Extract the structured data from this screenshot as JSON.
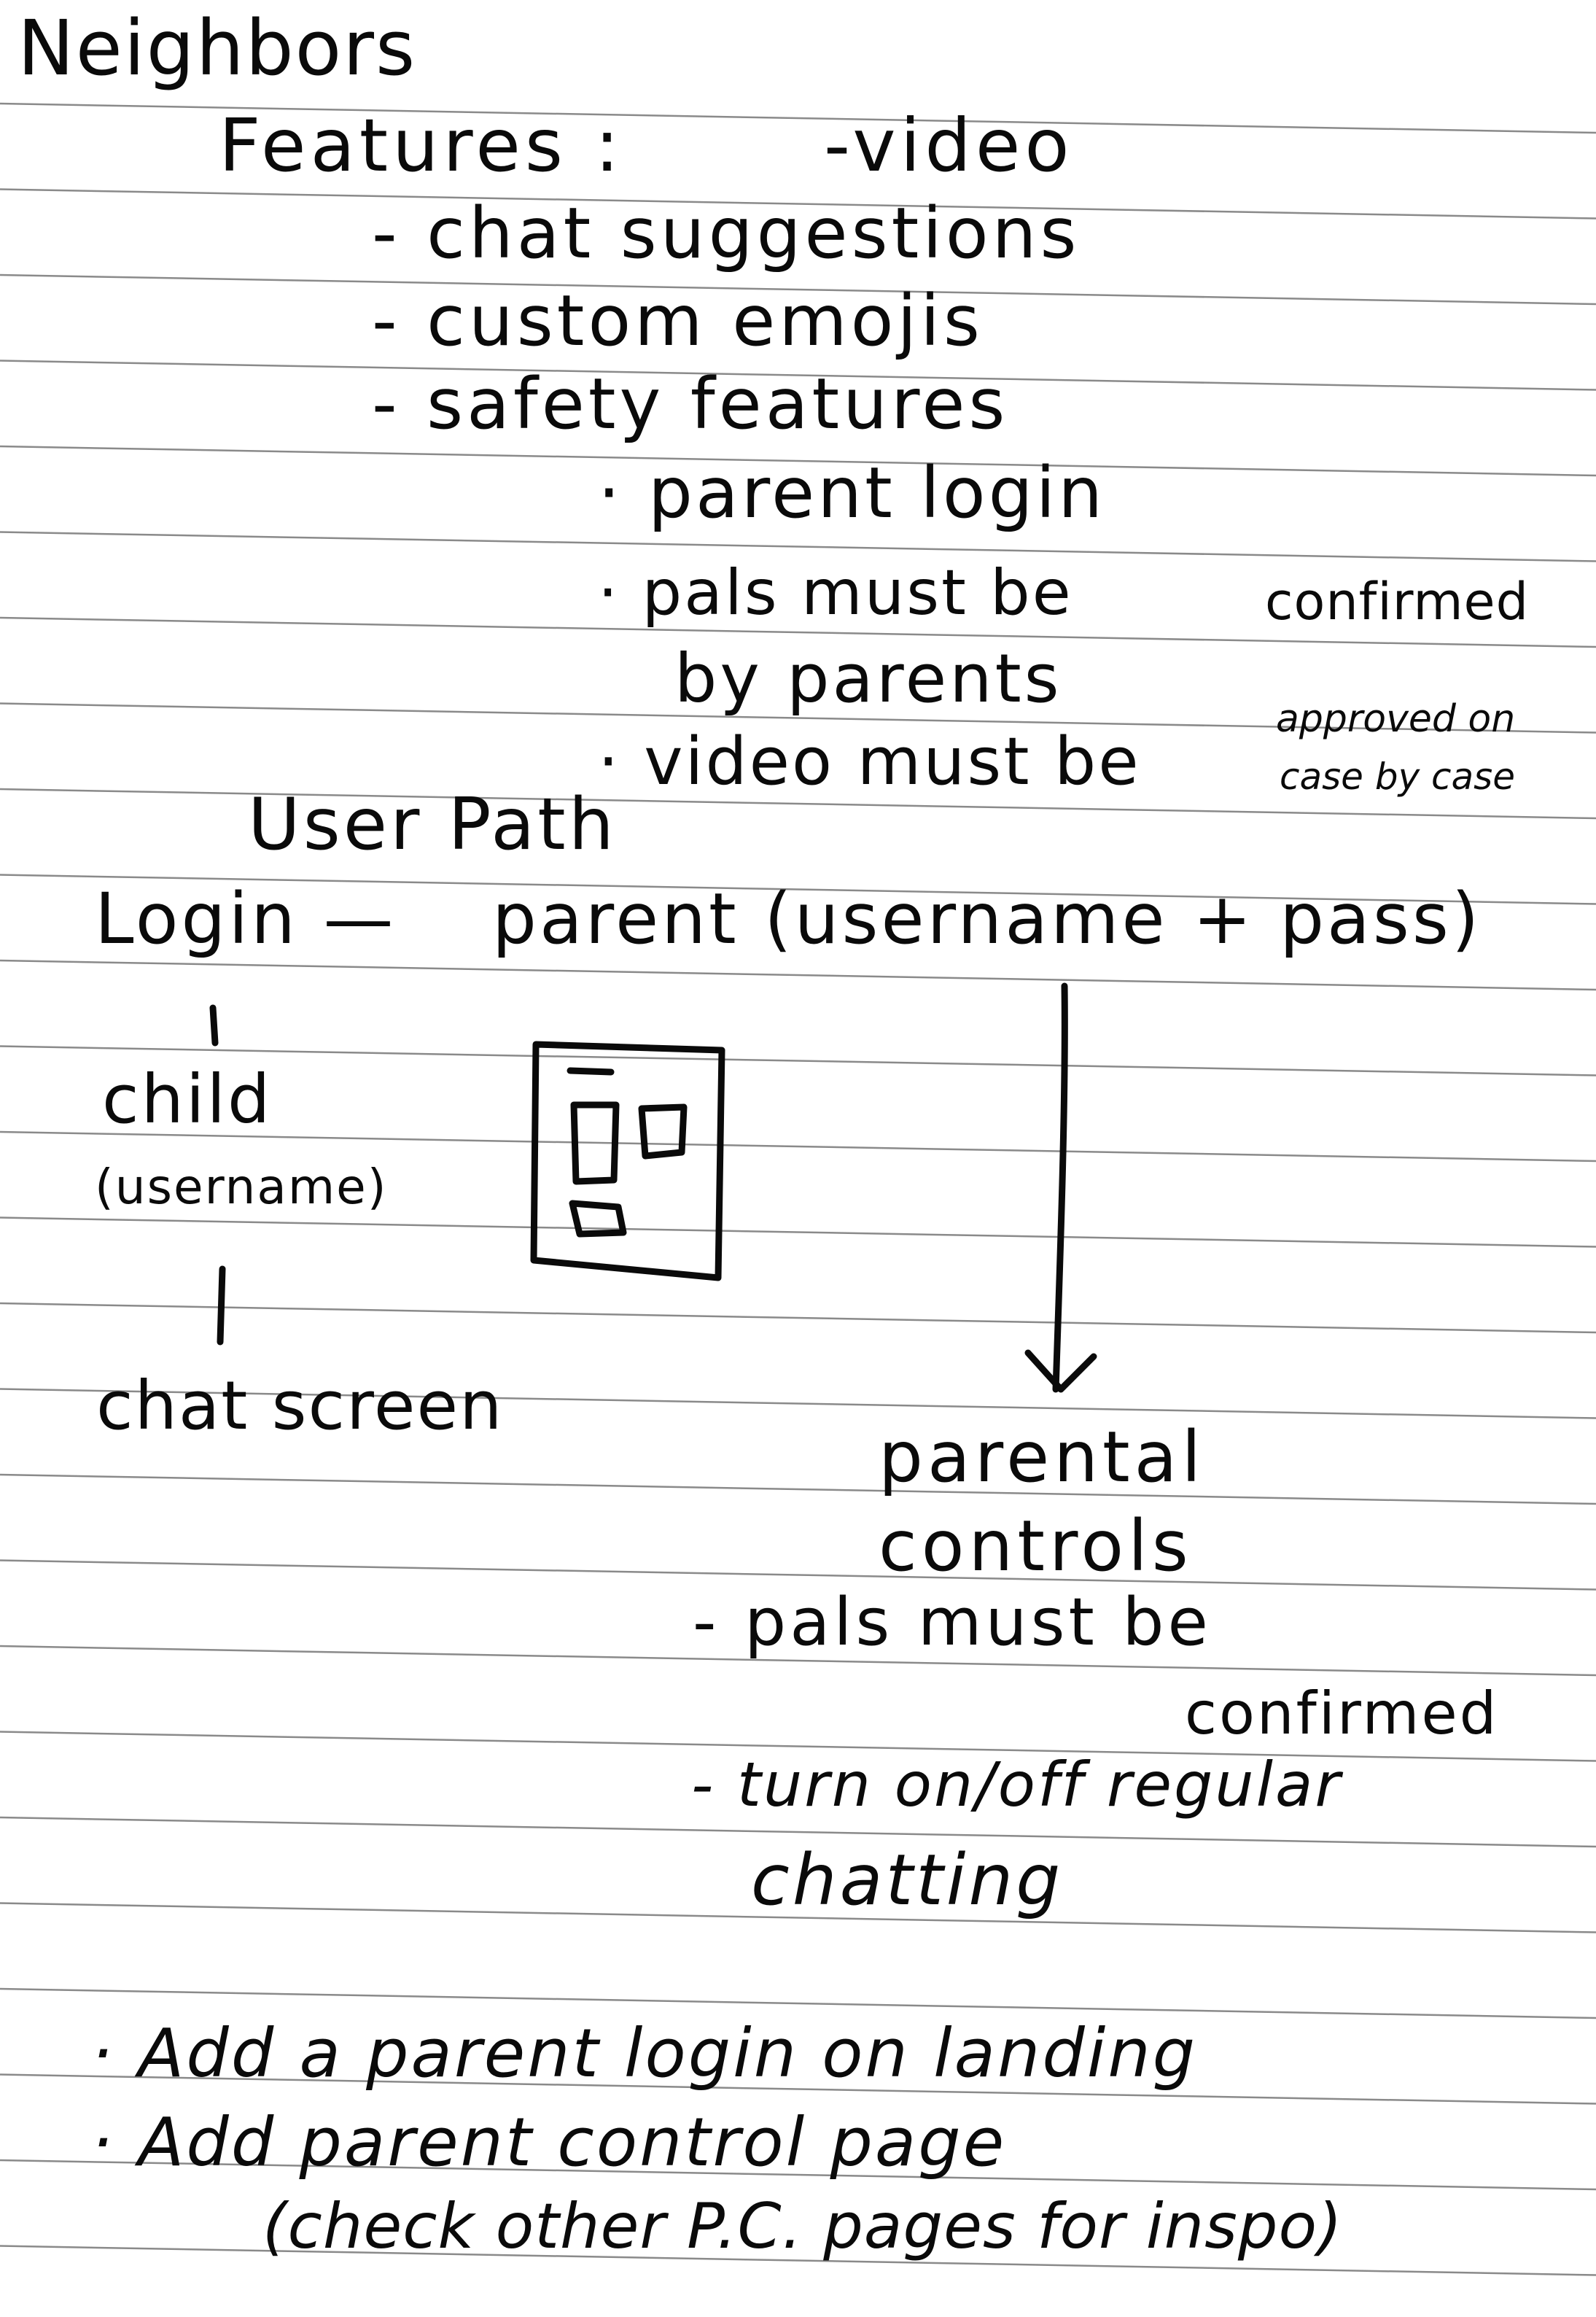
{
  "notes": {
    "title": "Neighbors",
    "features_heading": "Features :",
    "features": {
      "video": "-video",
      "chat_suggestions": "- chat suggestions",
      "custom_emojis": "- custom emojis",
      "safety_features": "- safety features",
      "safety": {
        "parent_login": "· parent login",
        "pals_confirmed": "· pals must be",
        "pals_confirmed_2": "confirmed",
        "by_parents": "by parents",
        "video_approved": "· video must be",
        "approved_on": "approved on",
        "case_by_case": "case by case"
      }
    },
    "user_path": {
      "heading": "User Path",
      "login": "Login —",
      "parent": "parent (username + pass)",
      "child": "child",
      "child_username": "(username)",
      "chat_screen": "chat screen",
      "parental_controls_1": "parental",
      "parental_controls_2": "controls",
      "pc_item_1": "- pals must be",
      "pc_item_1b": "confirmed",
      "pc_item_2": "- turn on/off regular",
      "pc_item_2b": "chatting"
    },
    "todo": {
      "item_1": "· Add a parent login on landing",
      "item_2": "· Add parent control page",
      "item_2b": "(check other P.C. pages for inspo)"
    }
  },
  "colors": {
    "paper": "#ffffff",
    "ink": "#0a0a0a",
    "rule": "#8a8a8a"
  }
}
